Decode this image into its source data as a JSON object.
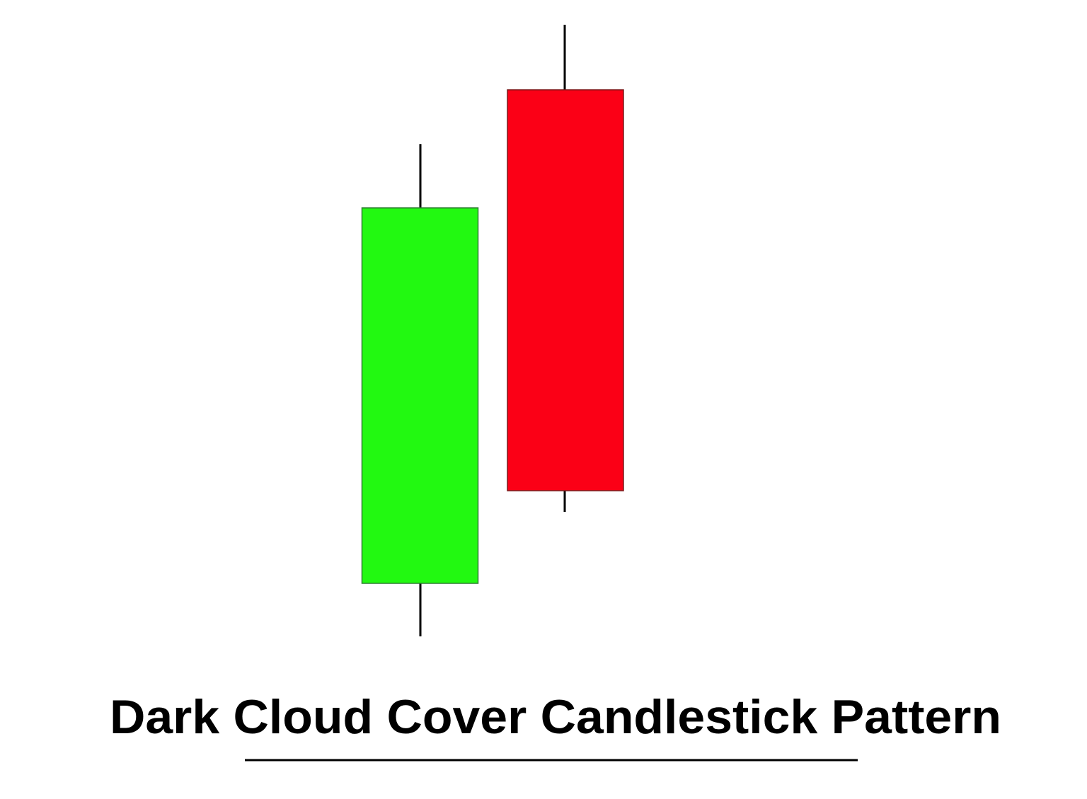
{
  "title": "Dark Cloud Cover Candlestick Pattern"
}
